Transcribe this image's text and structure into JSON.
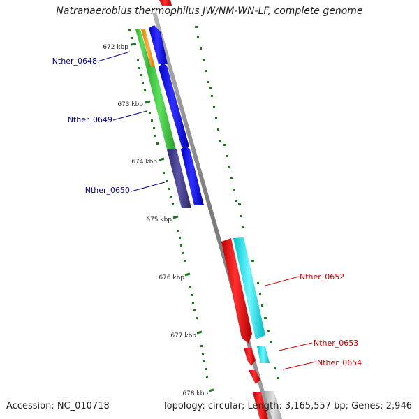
{
  "title": "Natranaerobius thermophilus JW/NM-WN-LF, complete genome",
  "footer": {
    "accession": "Accession: NC_010718",
    "summary": "Topology: circular; Length: 3,165,557 bp; Genes: 2,946"
  },
  "colors": {
    "backbone": "#8c8c8c",
    "tick": "#1a7a1a",
    "label_left": "#00008b",
    "label_right": "#cc0000",
    "blue": "#0a00ee",
    "green": "#3ec63e",
    "orange": "#ff8c00",
    "purple": "#3f3a8a",
    "red": "#ee0000",
    "cyan": "#00e5ee",
    "gray": "#bfbfbf"
  },
  "scale_labels": [
    "672 kbp",
    "673 kbp",
    "674 kbp",
    "675 kbp",
    "676 kbp",
    "677 kbp",
    "678 kbp"
  ],
  "gene_labels": {
    "left": [
      "Nther_0648",
      "Nther_0649",
      "Nther_0650"
    ],
    "right": [
      "Nther_0652",
      "Nther_0653",
      "Nther_0654"
    ]
  }
}
